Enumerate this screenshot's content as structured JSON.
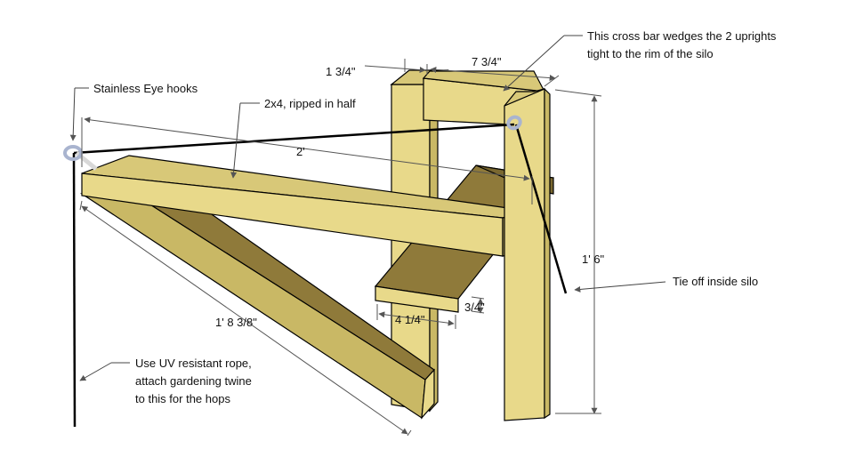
{
  "annotations": {
    "eye_hooks": "Stainless Eye hooks",
    "ripped_2x4": "2x4, ripped in half",
    "cross_bar_line1": "This cross bar wedges the 2 uprights",
    "cross_bar_line2": "tight to the rim of the silo",
    "tie_off": "Tie off inside silo",
    "rope_line1": "Use UV resistant rope,",
    "rope_line2": "attach gardening twine",
    "rope_line3": "to this for the hops"
  },
  "dimensions": {
    "upright_width": "1 3/4\"",
    "cross_bar_width": "7 3/4\"",
    "arm_length": "2'",
    "height": "1' 6\"",
    "brace_length": "1' 8 3/8\"",
    "shelf_depth": "4 1/4\"",
    "shelf_thickness": "3/4\""
  },
  "colors": {
    "wood_front": "#E8D98A",
    "wood_side": "#C9B865",
    "wood_top": "#D8C878",
    "wood_dark": "#8F7A3A",
    "outline": "#000000",
    "dim_line": "#555555",
    "hook": "#A9B4CF"
  }
}
